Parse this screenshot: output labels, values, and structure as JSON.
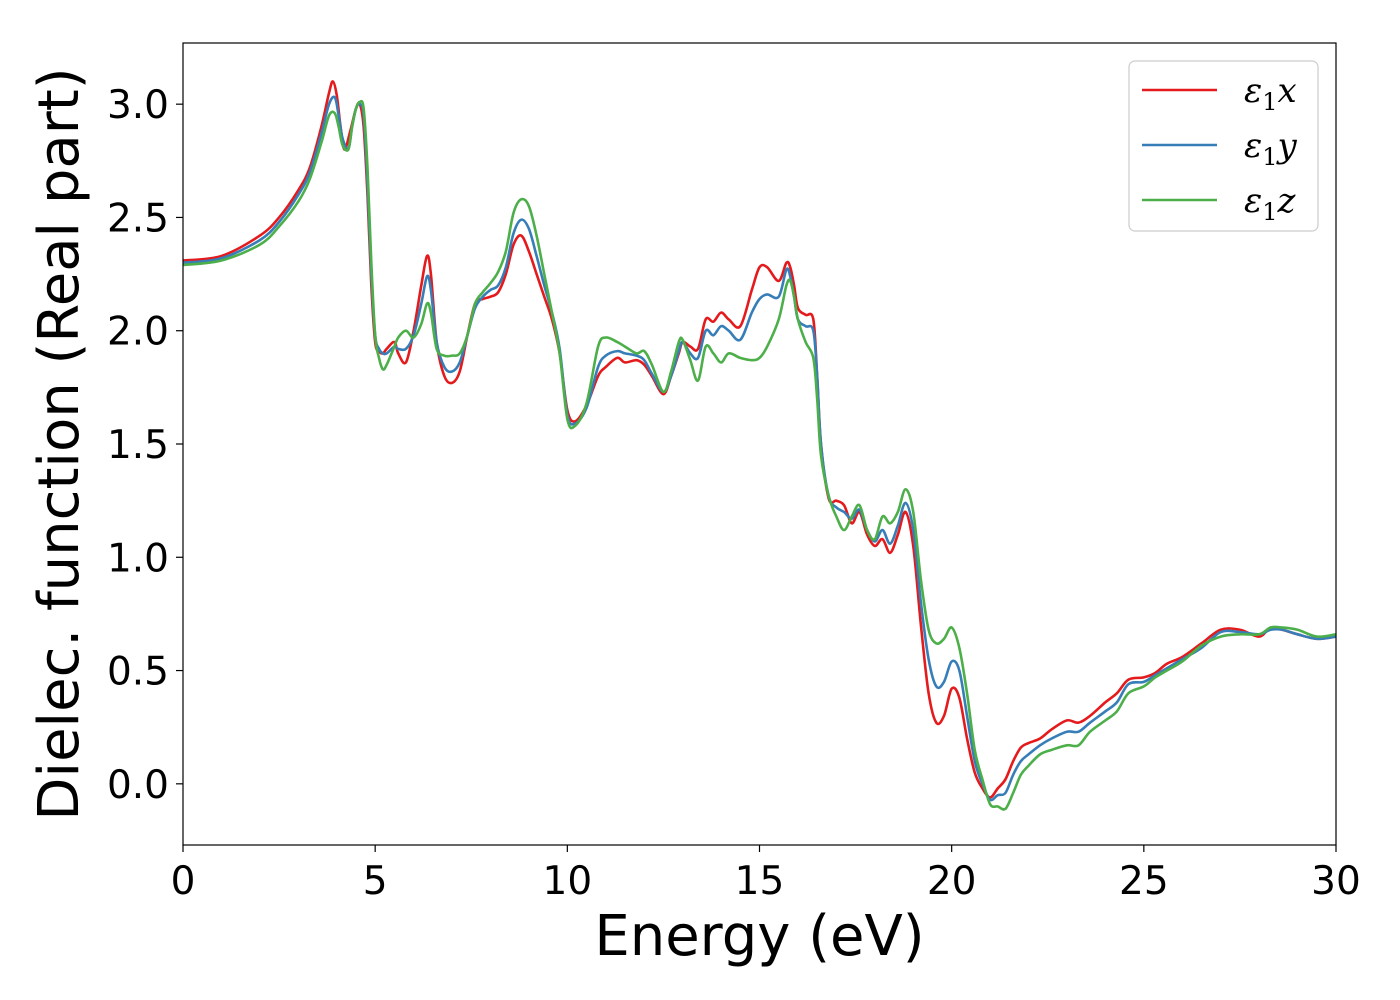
{
  "chart_data": {
    "type": "line",
    "xlabel": "Energy (eV)",
    "ylabel": "Dielec. function (Real part)",
    "xlim": [
      0,
      30
    ],
    "ylim": [
      -0.27,
      3.27
    ],
    "xticks": [
      0,
      5,
      10,
      15,
      20,
      25,
      30
    ],
    "xtick_labels": [
      "0",
      "5",
      "10",
      "15",
      "20",
      "25",
      "30"
    ],
    "yticks": [
      0.0,
      0.5,
      1.0,
      1.5,
      2.0,
      2.5,
      3.0
    ],
    "ytick_labels": [
      "0.0",
      "0.5",
      "1.0",
      "1.5",
      "2.0",
      "2.5",
      "3.0"
    ],
    "grid": false,
    "legend_position": "top-right",
    "series": [
      {
        "name": "ε1x",
        "name_base": "ε",
        "name_sub": "1",
        "name_suffix": "x",
        "color": "#e41a1c",
        "x": [
          0,
          1,
          2,
          2.5,
          3,
          3.3,
          3.6,
          3.8,
          3.9,
          4.0,
          4.1,
          4.2,
          4.35,
          4.5,
          4.6,
          4.7,
          4.8,
          4.9,
          5.0,
          5.1,
          5.2,
          5.3,
          5.5,
          5.6,
          5.8,
          6.0,
          6.2,
          6.35,
          6.45,
          6.6,
          6.8,
          7.0,
          7.2,
          7.4,
          7.6,
          7.8,
          8.0,
          8.2,
          8.4,
          8.6,
          8.8,
          9.0,
          9.2,
          9.4,
          9.6,
          9.8,
          10.0,
          10.2,
          10.5,
          10.8,
          11.0,
          11.3,
          11.5,
          11.8,
          12.0,
          12.2,
          12.5,
          12.7,
          12.9,
          13.0,
          13.2,
          13.4,
          13.6,
          13.8,
          14.0,
          14.2,
          14.5,
          14.8,
          15.0,
          15.2,
          15.5,
          15.7,
          15.8,
          15.9,
          16.0,
          16.2,
          16.4,
          16.5,
          16.6,
          16.8,
          17.0,
          17.2,
          17.4,
          17.6,
          17.8,
          18.0,
          18.2,
          18.4,
          18.6,
          18.8,
          19.0,
          19.2,
          19.4,
          19.6,
          19.8,
          20.0,
          20.2,
          20.4,
          20.6,
          20.8,
          21.0,
          21.2,
          21.4,
          21.6,
          21.8,
          22.0,
          22.3,
          22.6,
          23.0,
          23.3,
          23.6,
          24.0,
          24.3,
          24.6,
          25.0,
          25.3,
          25.6,
          26.0,
          26.5,
          27.0,
          27.5,
          28.0,
          28.3,
          28.6,
          29.0,
          29.5,
          30.0
        ],
        "y": [
          2.31,
          2.33,
          2.42,
          2.5,
          2.62,
          2.72,
          2.9,
          3.05,
          3.1,
          3.04,
          2.9,
          2.8,
          2.88,
          2.98,
          3.0,
          2.9,
          2.6,
          2.2,
          1.95,
          1.91,
          1.9,
          1.92,
          1.95,
          1.9,
          1.86,
          2.0,
          2.2,
          2.33,
          2.25,
          1.95,
          1.8,
          1.77,
          1.82,
          1.98,
          2.12,
          2.14,
          2.15,
          2.17,
          2.25,
          2.38,
          2.42,
          2.35,
          2.25,
          2.15,
          2.05,
          1.9,
          1.65,
          1.6,
          1.67,
          1.8,
          1.84,
          1.88,
          1.86,
          1.87,
          1.85,
          1.8,
          1.72,
          1.8,
          1.9,
          1.95,
          1.93,
          1.92,
          2.05,
          2.04,
          2.08,
          2.05,
          2.02,
          2.18,
          2.28,
          2.28,
          2.22,
          2.3,
          2.28,
          2.2,
          2.1,
          2.07,
          2.05,
          1.8,
          1.5,
          1.26,
          1.25,
          1.23,
          1.15,
          1.2,
          1.1,
          1.05,
          1.08,
          1.02,
          1.1,
          1.2,
          1.05,
          0.7,
          0.4,
          0.27,
          0.3,
          0.42,
          0.38,
          0.2,
          0.05,
          -0.02,
          -0.06,
          -0.02,
          0.02,
          0.1,
          0.16,
          0.18,
          0.2,
          0.24,
          0.28,
          0.27,
          0.3,
          0.36,
          0.4,
          0.46,
          0.47,
          0.49,
          0.53,
          0.56,
          0.62,
          0.68,
          0.68,
          0.65,
          0.69,
          0.68,
          0.66,
          0.64,
          0.65
        ]
      },
      {
        "name": "ε1y",
        "name_base": "ε",
        "name_sub": "1",
        "name_suffix": "y",
        "color": "#377eb8",
        "x": [
          0,
          1,
          2,
          2.5,
          3,
          3.3,
          3.6,
          3.8,
          3.95,
          4.05,
          4.15,
          4.3,
          4.4,
          4.5,
          4.6,
          4.7,
          4.8,
          4.9,
          5.0,
          5.1,
          5.2,
          5.3,
          5.5,
          5.6,
          5.8,
          6.0,
          6.2,
          6.35,
          6.45,
          6.6,
          6.8,
          7.0,
          7.2,
          7.4,
          7.6,
          7.8,
          8.0,
          8.2,
          8.4,
          8.6,
          8.8,
          9.0,
          9.2,
          9.4,
          9.6,
          9.8,
          10.0,
          10.2,
          10.5,
          10.8,
          11.0,
          11.3,
          11.5,
          11.8,
          12.0,
          12.2,
          12.5,
          12.7,
          12.9,
          13.0,
          13.2,
          13.4,
          13.6,
          13.8,
          14.0,
          14.2,
          14.5,
          14.8,
          15.0,
          15.2,
          15.5,
          15.7,
          15.8,
          15.9,
          16.0,
          16.2,
          16.4,
          16.5,
          16.6,
          16.8,
          17.0,
          17.2,
          17.4,
          17.6,
          17.8,
          18.0,
          18.2,
          18.4,
          18.6,
          18.8,
          19.0,
          19.2,
          19.4,
          19.6,
          19.8,
          20.0,
          20.2,
          20.4,
          20.6,
          20.8,
          21.0,
          21.2,
          21.4,
          21.6,
          21.8,
          22.0,
          22.3,
          22.6,
          23.0,
          23.3,
          23.6,
          24.0,
          24.3,
          24.6,
          25.0,
          25.3,
          25.6,
          26.0,
          26.5,
          27.0,
          27.5,
          28.0,
          28.3,
          28.6,
          29.0,
          29.5,
          30.0
        ],
        "y": [
          2.3,
          2.32,
          2.4,
          2.48,
          2.6,
          2.7,
          2.87,
          3.0,
          3.03,
          2.95,
          2.85,
          2.8,
          2.9,
          2.98,
          3.0,
          2.95,
          2.65,
          2.25,
          1.98,
          1.92,
          1.9,
          1.9,
          1.93,
          1.92,
          1.92,
          1.98,
          2.12,
          2.24,
          2.18,
          1.95,
          1.84,
          1.82,
          1.86,
          1.98,
          2.1,
          2.15,
          2.18,
          2.2,
          2.28,
          2.43,
          2.49,
          2.45,
          2.33,
          2.2,
          2.08,
          1.92,
          1.63,
          1.59,
          1.66,
          1.84,
          1.89,
          1.91,
          1.9,
          1.89,
          1.87,
          1.81,
          1.73,
          1.8,
          1.91,
          1.95,
          1.9,
          1.88,
          2.0,
          1.98,
          2.02,
          2.0,
          1.96,
          2.08,
          2.14,
          2.16,
          2.15,
          2.27,
          2.24,
          2.15,
          2.05,
          2.02,
          2.0,
          1.8,
          1.5,
          1.27,
          1.22,
          1.2,
          1.17,
          1.21,
          1.12,
          1.07,
          1.12,
          1.06,
          1.14,
          1.24,
          1.12,
          0.8,
          0.55,
          0.43,
          0.45,
          0.54,
          0.5,
          0.3,
          0.1,
          0.0,
          -0.07,
          -0.05,
          -0.04,
          0.04,
          0.1,
          0.13,
          0.17,
          0.2,
          0.23,
          0.23,
          0.27,
          0.32,
          0.36,
          0.44,
          0.45,
          0.48,
          0.51,
          0.55,
          0.6,
          0.67,
          0.67,
          0.66,
          0.68,
          0.68,
          0.66,
          0.64,
          0.65
        ]
      },
      {
        "name": "ε1z",
        "name_base": "ε",
        "name_sub": "1",
        "name_suffix": "z",
        "color": "#4daf4a",
        "x": [
          0,
          1,
          2,
          2.5,
          3,
          3.3,
          3.6,
          3.8,
          3.95,
          4.05,
          4.15,
          4.3,
          4.4,
          4.5,
          4.6,
          4.7,
          4.8,
          4.9,
          5.0,
          5.1,
          5.2,
          5.3,
          5.5,
          5.6,
          5.8,
          6.0,
          6.2,
          6.35,
          6.45,
          6.6,
          6.8,
          7.0,
          7.2,
          7.4,
          7.6,
          7.8,
          8.0,
          8.2,
          8.4,
          8.6,
          8.8,
          9.0,
          9.2,
          9.4,
          9.6,
          9.8,
          10.0,
          10.2,
          10.5,
          10.8,
          11.0,
          11.3,
          11.5,
          11.8,
          12.0,
          12.2,
          12.5,
          12.7,
          12.9,
          13.0,
          13.2,
          13.4,
          13.6,
          13.8,
          14.0,
          14.2,
          14.5,
          14.8,
          15.0,
          15.2,
          15.5,
          15.7,
          15.8,
          15.9,
          16.0,
          16.2,
          16.4,
          16.5,
          16.6,
          16.8,
          17.0,
          17.2,
          17.4,
          17.6,
          17.8,
          18.0,
          18.2,
          18.4,
          18.6,
          18.8,
          19.0,
          19.2,
          19.4,
          19.6,
          19.8,
          20.0,
          20.2,
          20.4,
          20.6,
          20.8,
          21.0,
          21.2,
          21.4,
          21.6,
          21.8,
          22.0,
          22.3,
          22.6,
          23.0,
          23.3,
          23.6,
          24.0,
          24.3,
          24.6,
          25.0,
          25.3,
          25.6,
          26.0,
          26.5,
          27.0,
          27.5,
          28.0,
          28.3,
          28.6,
          29.0,
          29.5,
          30.0
        ],
        "y": [
          2.29,
          2.31,
          2.38,
          2.46,
          2.57,
          2.67,
          2.83,
          2.95,
          2.96,
          2.9,
          2.82,
          2.8,
          2.9,
          2.98,
          3.01,
          2.98,
          2.72,
          2.3,
          1.98,
          1.88,
          1.83,
          1.85,
          1.93,
          1.97,
          2.0,
          1.97,
          2.03,
          2.12,
          2.08,
          1.92,
          1.89,
          1.89,
          1.9,
          1.98,
          2.12,
          2.17,
          2.21,
          2.26,
          2.35,
          2.52,
          2.58,
          2.55,
          2.42,
          2.25,
          2.08,
          1.9,
          1.61,
          1.58,
          1.68,
          1.93,
          1.97,
          1.95,
          1.93,
          1.9,
          1.91,
          1.85,
          1.73,
          1.82,
          1.95,
          1.96,
          1.87,
          1.78,
          1.93,
          1.9,
          1.86,
          1.9,
          1.88,
          1.87,
          1.88,
          1.93,
          2.05,
          2.2,
          2.22,
          2.15,
          2.05,
          1.95,
          1.88,
          1.7,
          1.45,
          1.27,
          1.18,
          1.12,
          1.18,
          1.23,
          1.12,
          1.08,
          1.18,
          1.15,
          1.2,
          1.3,
          1.2,
          0.9,
          0.68,
          0.62,
          0.64,
          0.69,
          0.6,
          0.4,
          0.15,
          0.02,
          -0.09,
          -0.1,
          -0.11,
          -0.04,
          0.04,
          0.08,
          0.13,
          0.15,
          0.17,
          0.17,
          0.23,
          0.28,
          0.32,
          0.4,
          0.43,
          0.47,
          0.5,
          0.54,
          0.61,
          0.65,
          0.66,
          0.66,
          0.69,
          0.69,
          0.68,
          0.65,
          0.66
        ]
      }
    ]
  }
}
